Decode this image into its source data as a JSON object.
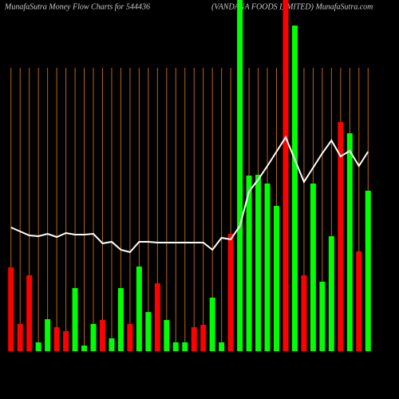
{
  "chart_data": {
    "type": "bar",
    "title": "MunafaSutra  Money Flow  Charts for 544436",
    "subtitle": "(VANDANA FOODS LIMITED) MunafaSutra.com",
    "categories": [
      null,
      null,
      null,
      null,
      null,
      null,
      null,
      null,
      null,
      null,
      null,
      null,
      null,
      null,
      null,
      null,
      null,
      null,
      null,
      null,
      null,
      null,
      null,
      null,
      null,
      null,
      null,
      null,
      null,
      null,
      null,
      null,
      null,
      null,
      null,
      null,
      null,
      null,
      null,
      null
    ],
    "values": [
      105,
      34,
      95,
      11,
      40,
      30,
      25,
      79,
      7,
      34,
      39,
      16,
      79,
      34,
      106,
      49,
      85,
      39,
      11,
      11,
      30,
      33,
      67,
      11,
      147,
      440,
      220,
      221,
      210,
      182,
      440,
      408,
      95,
      210,
      87,
      144,
      287,
      273,
      125,
      201
    ],
    "bar_colors": [
      "#ff0000",
      "#ff0000",
      "#ff0000",
      "#00ff00",
      "#00ff00",
      "#ff0000",
      "#ff0000",
      "#00ff00",
      "#00ff00",
      "#00ff00",
      "#ff0000",
      "#00ff00",
      "#00ff00",
      "#ff0000",
      "#00ff00",
      "#00ff00",
      "#ff0000",
      "#00ff00",
      "#00ff00",
      "#00ff00",
      "#ff0000",
      "#ff0000",
      "#00ff00",
      "#00ff00",
      "#ff0000",
      "#00ff00",
      "#00ff00",
      "#00ff00",
      "#00ff00",
      "#00ff00",
      "#ff0000",
      "#00ff00",
      "#ff0000",
      "#00ff00",
      "#00ff00",
      "#00ff00",
      "#ff0000",
      "#00ff00",
      "#ff0000",
      "#00ff00"
    ],
    "line": {
      "color": "#ffffff",
      "values": [
        155,
        150,
        145,
        144,
        147,
        143,
        148,
        146,
        146,
        147,
        135,
        137,
        127,
        124,
        137,
        137,
        136,
        136,
        136,
        136,
        136,
        136,
        127,
        142,
        140,
        157,
        200,
        215,
        232,
        250,
        268,
        240,
        212,
        230,
        248,
        264,
        244,
        251,
        232,
        250
      ]
    },
    "ylim": [
      0,
      440
    ],
    "gridline_color": "#b8680f"
  }
}
